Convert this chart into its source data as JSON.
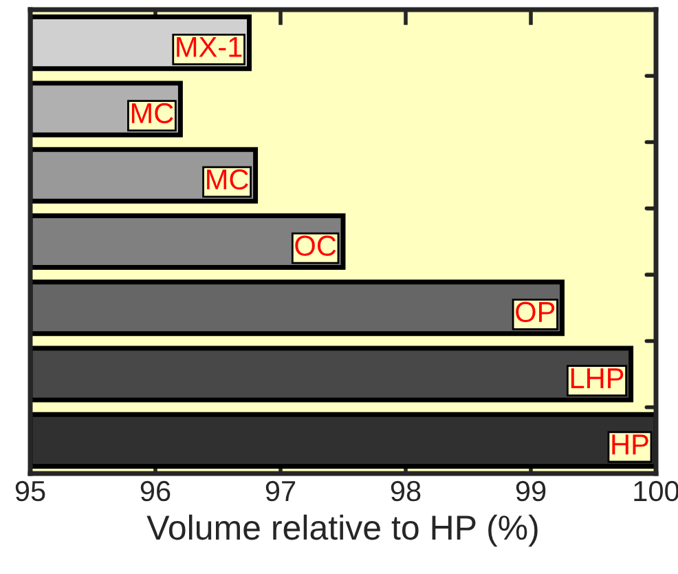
{
  "chart_data": {
    "type": "bar",
    "orientation": "horizontal",
    "xlabel": "Volume relative to HP (%)",
    "categories": [
      null,
      null,
      null,
      null,
      null,
      null,
      null
    ],
    "annotations": [
      {
        "text": "MX-1",
        "x": 96.75
      },
      {
        "text": "MC",
        "x": 96.2
      },
      {
        "text": "MC",
        "x": 96.8
      },
      {
        "text": "OC",
        "x": 97.5
      },
      {
        "text": "OP",
        "x": 99.25
      },
      {
        "text": "LHP",
        "x": 99.8
      },
      {
        "text": "HP",
        "x": 100
      }
    ],
    "values": [
      96.75,
      96.2,
      96.8,
      97.5,
      99.25,
      99.8,
      100
    ],
    "colors": [
      "#d0d0d0",
      "#b0b0b0",
      "#999999",
      "#808080",
      "#666666",
      "#484848",
      "#303030"
    ],
    "xlim": [
      95,
      100
    ],
    "xticks": [
      95,
      96,
      97,
      98,
      99,
      100
    ],
    "tick_labels": "x",
    "grid": false,
    "legend": false
  }
}
